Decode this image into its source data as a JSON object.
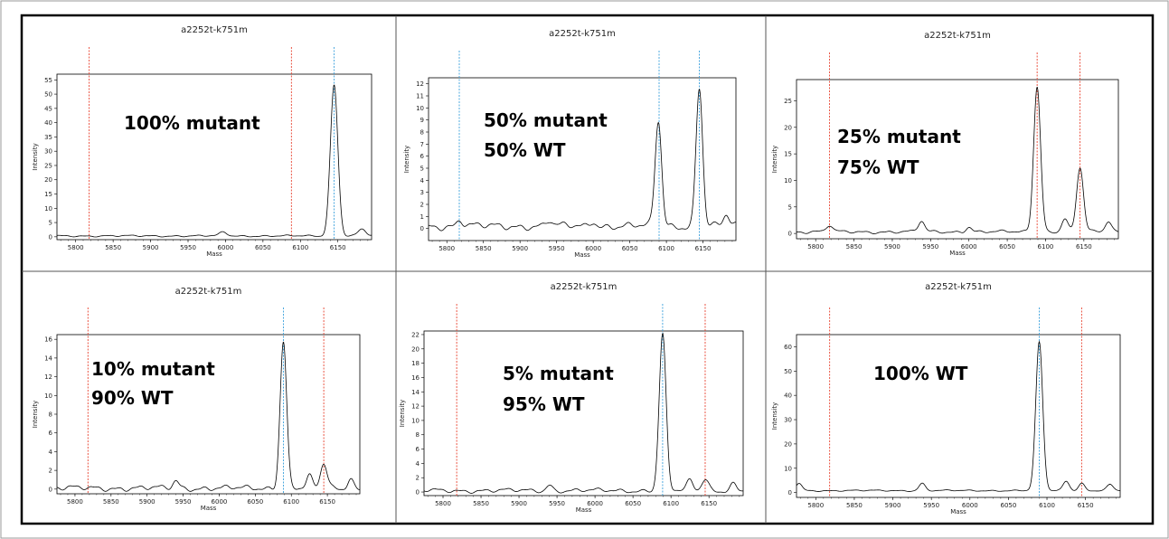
{
  "colors": {
    "red_marker": "#e8422f",
    "blue_marker": "#3aa0dc",
    "trace": "#000000",
    "frame": "#000000"
  },
  "chart_data": [
    {
      "type": "line",
      "title": "a2252t-k751m",
      "xlabel": "Mass",
      "ylabel": "Intensity",
      "xlim": [
        5775,
        6195
      ],
      "ylim": [
        -1,
        57
      ],
      "xticks": [
        5800,
        5850,
        5900,
        5950,
        6000,
        6050,
        6100,
        6150
      ],
      "yticks": [
        0,
        5,
        10,
        15,
        20,
        25,
        30,
        35,
        40,
        45,
        50,
        55
      ],
      "annotations": [
        "100% mutant"
      ],
      "markers": [
        {
          "x": 5818,
          "color": "red"
        },
        {
          "x": 6088,
          "color": "red"
        },
        {
          "x": 6145,
          "color": "blue"
        }
      ],
      "peaks": [
        {
          "x": 6145,
          "y": 53,
          "w": 5
        },
        {
          "x": 6182,
          "y": 2.5,
          "w": 5
        },
        {
          "x": 5997,
          "y": 1.3,
          "w": 5
        }
      ],
      "baseline": 0.3
    },
    {
      "type": "line",
      "title": "a2252t-k751m",
      "xlabel": "Mass",
      "ylabel": "Intensity",
      "xlim": [
        5775,
        6195
      ],
      "ylim": [
        -1,
        12.5
      ],
      "xticks": [
        5800,
        5850,
        5900,
        5950,
        6000,
        6050,
        6100,
        6150
      ],
      "yticks": [
        0,
        1,
        2,
        3,
        4,
        5,
        6,
        7,
        8,
        9,
        10,
        11,
        12
      ],
      "annotations": [
        "50% mutant",
        "50% WT"
      ],
      "markers": [
        {
          "x": 5817,
          "color": "blue"
        },
        {
          "x": 6090,
          "color": "blue"
        },
        {
          "x": 6145,
          "color": "blue"
        }
      ],
      "peaks": [
        {
          "x": 6089,
          "y": 8.7,
          "w": 4.5
        },
        {
          "x": 6145,
          "y": 11.5,
          "w": 4.5
        },
        {
          "x": 6182,
          "y": 0.9,
          "w": 4
        },
        {
          "x": 5818,
          "y": 0.5,
          "w": 4
        },
        {
          "x": 5940,
          "y": 0.45,
          "w": 4
        },
        {
          "x": 6000,
          "y": 0.45,
          "w": 4
        }
      ],
      "baseline": 0.2
    },
    {
      "type": "line",
      "title": "a2252t-k751m",
      "xlabel": "Mass",
      "ylabel": "Intensity",
      "xlim": [
        5775,
        6195
      ],
      "ylim": [
        -1,
        29
      ],
      "xticks": [
        5800,
        5850,
        5900,
        5950,
        6000,
        6050,
        6100,
        6150
      ],
      "yticks": [
        0,
        5,
        10,
        15,
        20,
        25
      ],
      "annotations": [
        "25% mutant",
        "75% WT"
      ],
      "markers": [
        {
          "x": 5818,
          "color": "red"
        },
        {
          "x": 6089,
          "color": "red"
        },
        {
          "x": 6145,
          "color": "red"
        }
      ],
      "peaks": [
        {
          "x": 6089,
          "y": 27.5,
          "w": 4.5
        },
        {
          "x": 6145,
          "y": 12,
          "w": 4.5
        },
        {
          "x": 6125,
          "y": 2.5,
          "w": 4
        },
        {
          "x": 6182,
          "y": 2,
          "w": 4
        },
        {
          "x": 5938,
          "y": 2,
          "w": 4
        },
        {
          "x": 5818,
          "y": 1.2,
          "w": 4
        },
        {
          "x": 6000,
          "y": 1,
          "w": 4
        }
      ],
      "baseline": 0.3
    },
    {
      "type": "line",
      "title": "a2252t-k751m",
      "xlabel": "Mass",
      "ylabel": "Intensity",
      "xlim": [
        5775,
        6195
      ],
      "ylim": [
        -0.5,
        16.5
      ],
      "xticks": [
        5800,
        5850,
        5900,
        5950,
        6000,
        6050,
        6100,
        6150
      ],
      "yticks": [
        0,
        2,
        4,
        6,
        8,
        10,
        12,
        14,
        16
      ],
      "annotations": [
        "10% mutant",
        "90% WT"
      ],
      "markers": [
        {
          "x": 5818,
          "color": "red"
        },
        {
          "x": 6089,
          "color": "blue"
        },
        {
          "x": 6145,
          "color": "red"
        }
      ],
      "peaks": [
        {
          "x": 6089,
          "y": 15.8,
          "w": 4.5
        },
        {
          "x": 6145,
          "y": 2.6,
          "w": 4.5
        },
        {
          "x": 6125,
          "y": 1.2,
          "w": 4
        },
        {
          "x": 6182,
          "y": 1,
          "w": 4
        },
        {
          "x": 5940,
          "y": 0.8,
          "w": 4
        }
      ],
      "baseline": 0.1
    },
    {
      "type": "line",
      "title": "a2252t-k751m",
      "xlabel": "Mass",
      "ylabel": "Intensity",
      "xlim": [
        5775,
        6195
      ],
      "ylim": [
        -0.5,
        22.5
      ],
      "xticks": [
        5800,
        5850,
        5900,
        5950,
        6000,
        6050,
        6100,
        6150
      ],
      "yticks": [
        0,
        2,
        4,
        6,
        8,
        10,
        12,
        14,
        16,
        18,
        20,
        22
      ],
      "annotations": [
        "5% mutant",
        "95% WT"
      ],
      "markers": [
        {
          "x": 5818,
          "color": "red"
        },
        {
          "x": 6089,
          "color": "blue"
        },
        {
          "x": 6145,
          "color": "red"
        }
      ],
      "peaks": [
        {
          "x": 6089,
          "y": 21.8,
          "w": 4.5
        },
        {
          "x": 6145,
          "y": 1.6,
          "w": 4.5
        },
        {
          "x": 6125,
          "y": 1.4,
          "w": 4
        },
        {
          "x": 6182,
          "y": 1,
          "w": 4
        },
        {
          "x": 5940,
          "y": 0.8,
          "w": 4
        }
      ],
      "baseline": 0.2
    },
    {
      "type": "line",
      "title": "a2252t-k751m",
      "xlabel": "Mass",
      "ylabel": "Intensity",
      "xlim": [
        5775,
        6195
      ],
      "ylim": [
        -2,
        65
      ],
      "xticks": [
        5800,
        5850,
        5900,
        5950,
        6000,
        6050,
        6100,
        6150
      ],
      "yticks": [
        0,
        10,
        20,
        30,
        40,
        50,
        60
      ],
      "annotations": [
        "100% WT"
      ],
      "markers": [
        {
          "x": 5818,
          "color": "red"
        },
        {
          "x": 6090,
          "color": "blue"
        },
        {
          "x": 6145,
          "color": "red"
        }
      ],
      "peaks": [
        {
          "x": 6090,
          "y": 61,
          "w": 4.5
        },
        {
          "x": 6125,
          "y": 4,
          "w": 4
        },
        {
          "x": 6145,
          "y": 3,
          "w": 4
        },
        {
          "x": 6182,
          "y": 2.5,
          "w": 4
        },
        {
          "x": 5938,
          "y": 3,
          "w": 4
        },
        {
          "x": 5778,
          "y": 3,
          "w": 4
        }
      ],
      "baseline": 0.8
    }
  ]
}
